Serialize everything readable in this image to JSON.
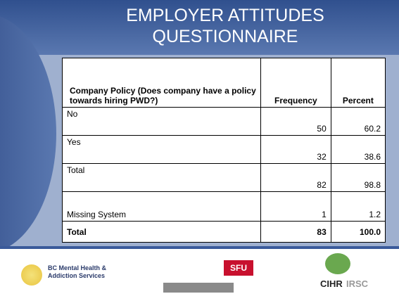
{
  "title_lines": [
    "EMPLOYER ATTITUDES",
    "QUESTIONNAIRE"
  ],
  "table": {
    "header": [
      "Company Policy (Does company have a policy towards hiring PWD?)",
      "Frequency",
      "Percent"
    ],
    "rows": [
      [
        "No",
        "50",
        "60.2"
      ],
      [
        "Yes",
        "32",
        "38.6"
      ],
      [
        "Total",
        "82",
        "98.8"
      ],
      [
        "Missing System",
        "1",
        "1.2"
      ],
      [
        "Total",
        "83",
        "100.0"
      ]
    ]
  },
  "logos": {
    "bcmh": "BC Mental Health & Addiction Services",
    "sfu": "SFU",
    "cihr": "CIHR",
    "irsc": "IRSC"
  }
}
